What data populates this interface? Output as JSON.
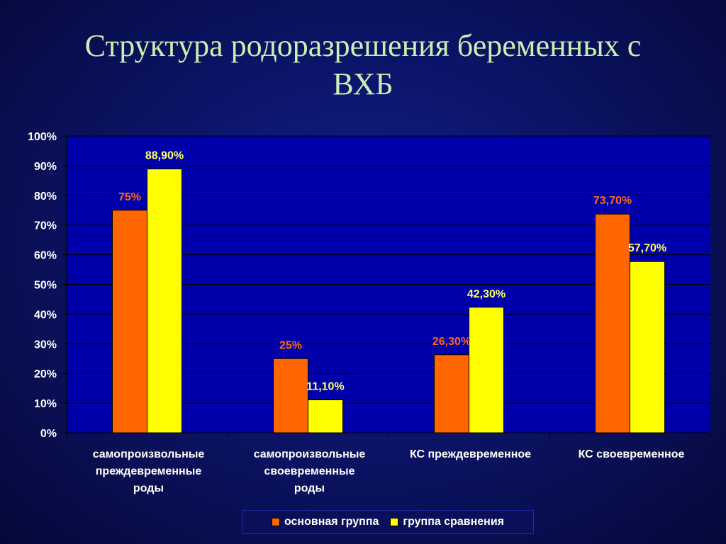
{
  "title": {
    "line1": "Структура родоразрешения беременных с",
    "line2": "ВХБ"
  },
  "chart_data": {
    "type": "bar",
    "ylim": [
      0,
      100
    ],
    "yticks": [
      "0%",
      "10%",
      "20%",
      "30%",
      "40%",
      "50%",
      "60%",
      "70%",
      "80%",
      "90%",
      "100%"
    ],
    "grid": true,
    "legend_position": "bottom",
    "categories": [
      [
        "самопроизвольные",
        "преждевременные",
        "роды"
      ],
      [
        "самопроизвольные",
        "своевременные",
        "роды"
      ],
      [
        "КС преждевременное"
      ],
      [
        "КС своевременное"
      ]
    ],
    "series": [
      {
        "name": "основная группа",
        "color": "#ff6600",
        "label_color": "#ff6a1a",
        "values": [
          75,
          25,
          26.3,
          73.7
        ],
        "labels": [
          "75%",
          "25%",
          "26,30%",
          "73,70%"
        ]
      },
      {
        "name": "группа сравнения",
        "color": "#ffff00",
        "label_color": "#ffff66",
        "values": [
          88.9,
          11.1,
          42.3,
          57.7
        ],
        "labels": [
          "88,90%",
          "11,10%",
          "42,30%",
          "57,70%"
        ]
      }
    ]
  }
}
